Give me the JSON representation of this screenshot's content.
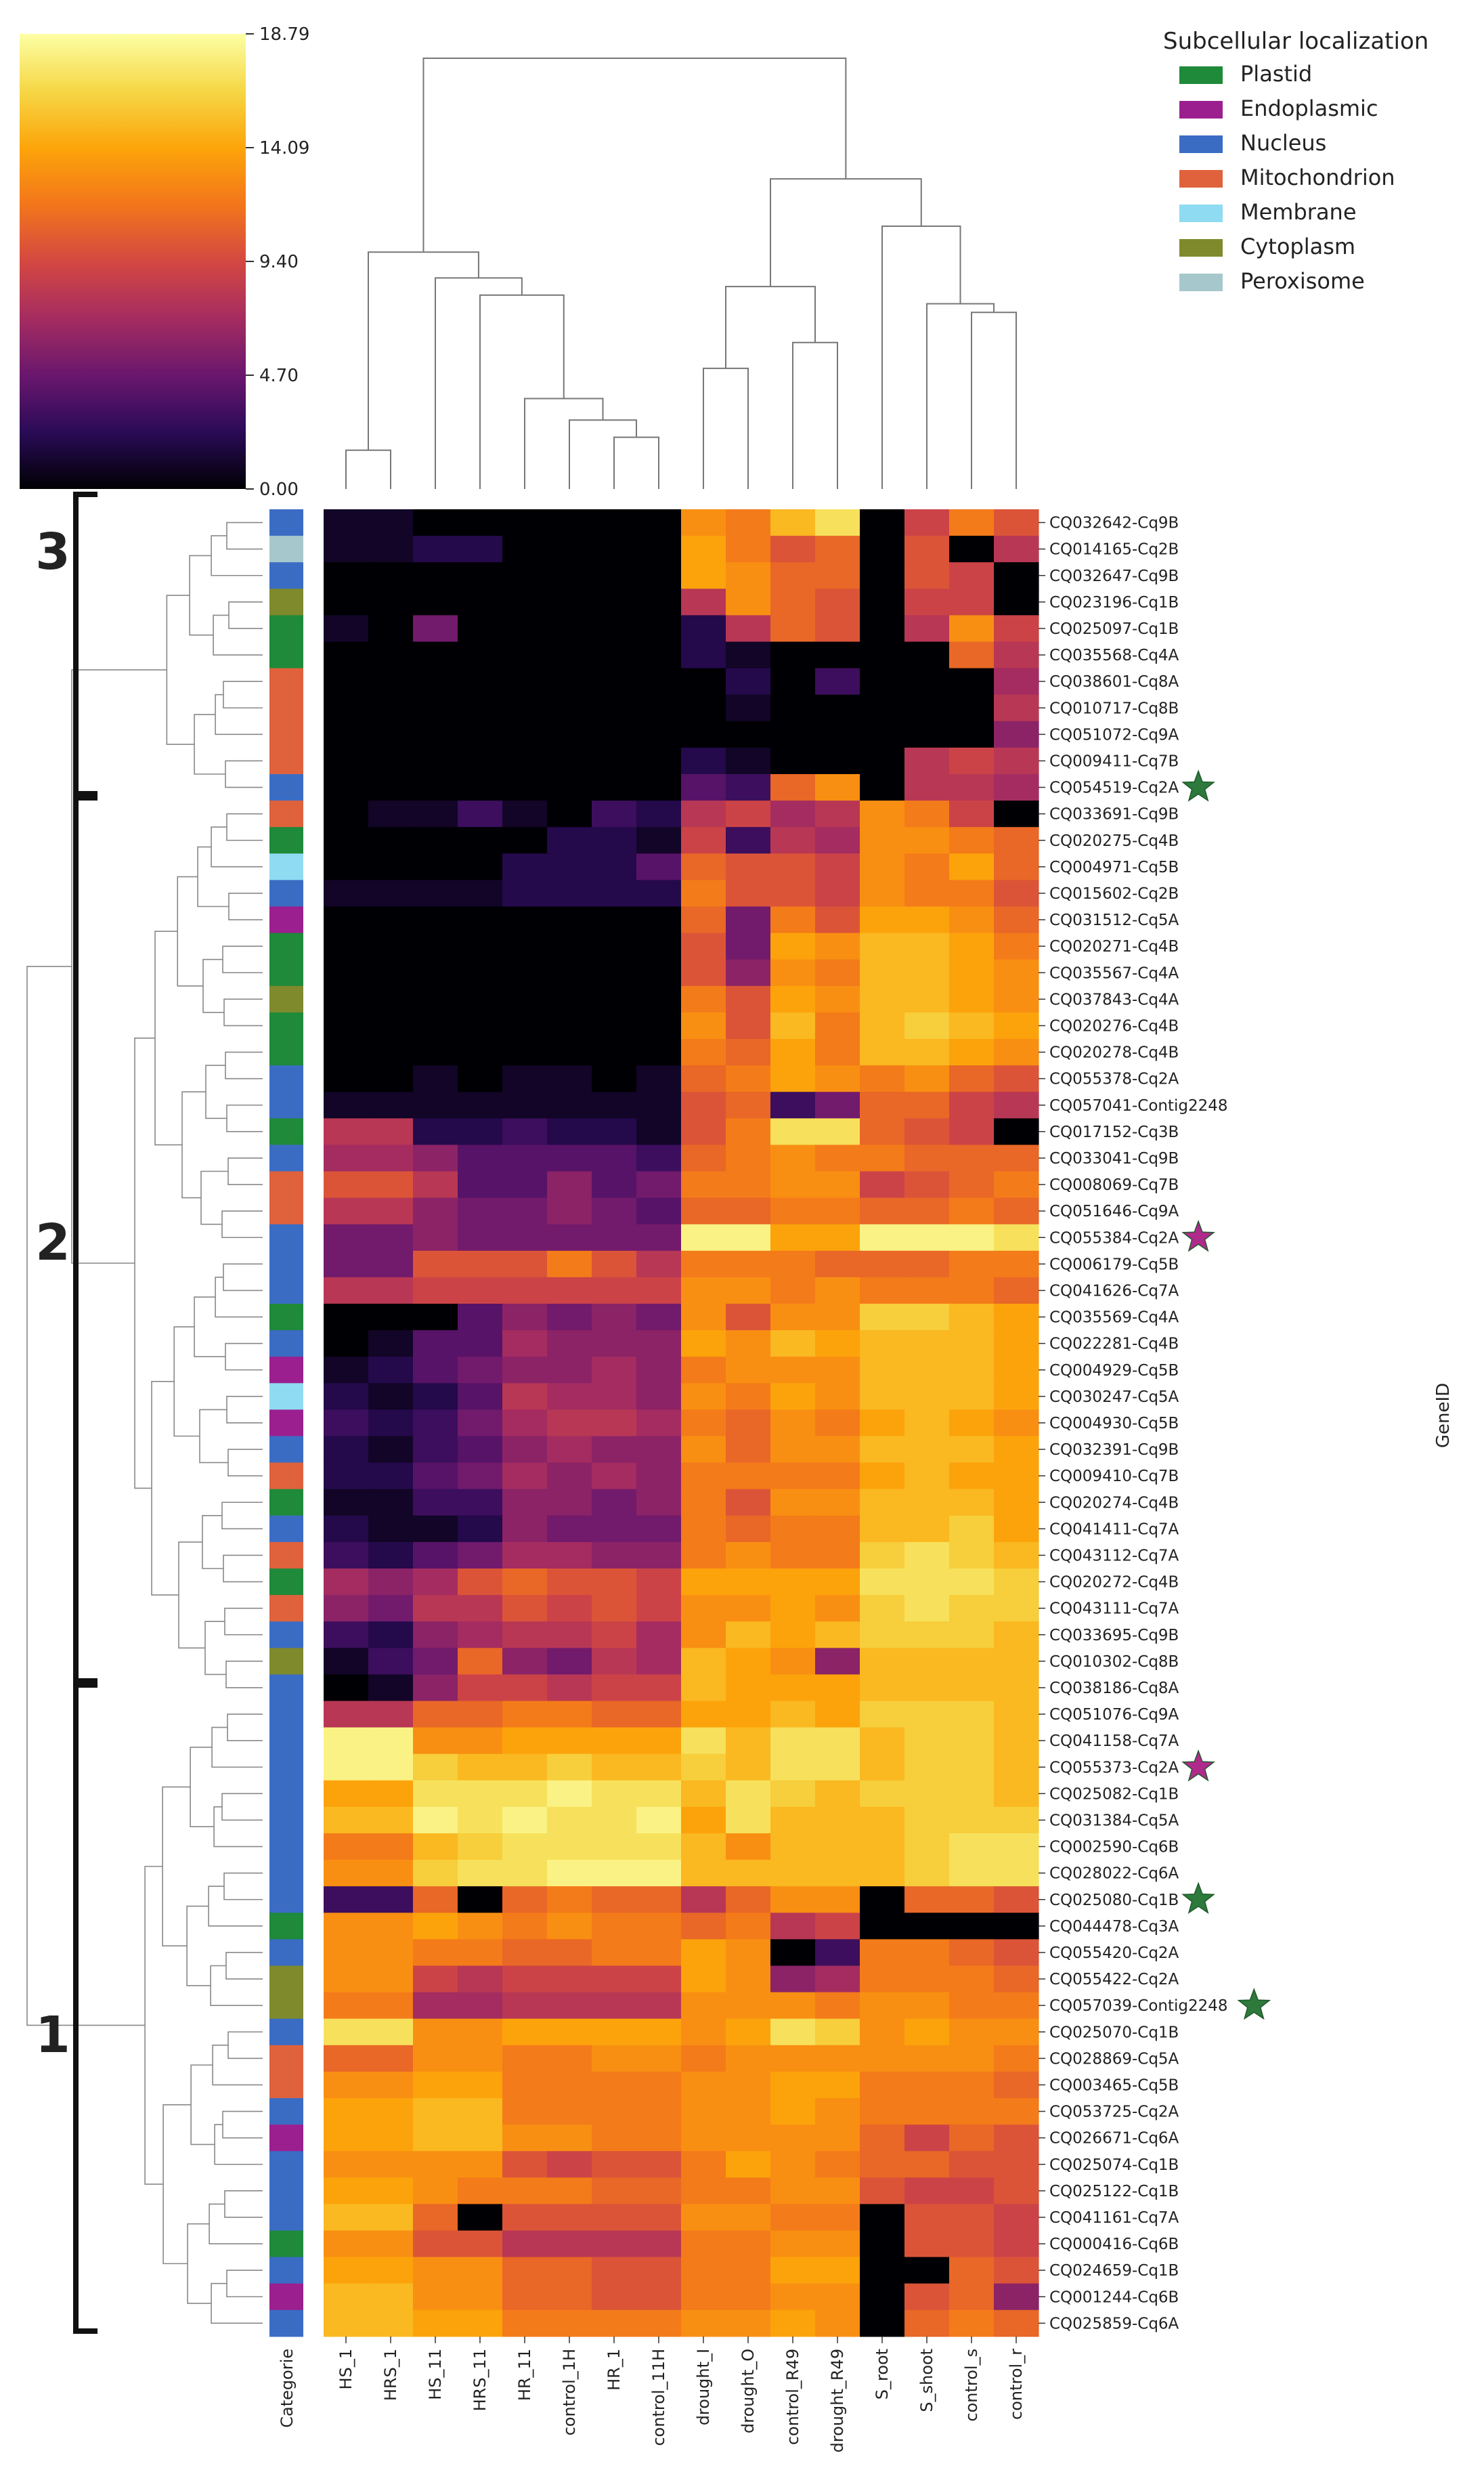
{
  "chart_data": {
    "type": "heatmap",
    "title": "",
    "colorbar": {
      "ticks": [
        "18.79",
        "14.09",
        "9.40",
        "4.70",
        "0.00"
      ],
      "min": 0,
      "max": 18.79,
      "colormap": [
        "#000004",
        "#2a0b57",
        "#6a176e",
        "#a52c60",
        "#d44842",
        "#f3761b",
        "#fca50a",
        "#f6d746",
        "#fcffa4"
      ]
    },
    "legend": {
      "title": "Subcellular localization",
      "placement": "top-right",
      "items": [
        {
          "label": "Plastid",
          "color": "#1e8a3a"
        },
        {
          "label": "Endoplasmic",
          "color": "#9b1f8f"
        },
        {
          "label": "Nucleus",
          "color": "#3b6cc4"
        },
        {
          "label": "Mitochondrion",
          "color": "#e0623c"
        },
        {
          "label": "Membrane",
          "color": "#8fdcf2"
        },
        {
          "label": "Cytoplasm",
          "color": "#7f8a2c"
        },
        {
          "label": "Peroxisome",
          "color": "#a6c8cc"
        }
      ]
    },
    "category_label": "Categorie",
    "y_axis_label": "GeneID",
    "columns": [
      "HS_1",
      "HRS_1",
      "HS_11",
      "HRS_11",
      "HR_11",
      "control_1H",
      "HR_1",
      "control_11H",
      "drought_I",
      "drought_O",
      "control_R49",
      "drought_R49",
      "S_root",
      "S_shoot",
      "control_s",
      "control_r"
    ],
    "rows": [
      "CQ032642-Cq9B",
      "CQ014165-Cq2B",
      "CQ032647-Cq9B",
      "CQ023196-Cq1B",
      "CQ025097-Cq1B",
      "CQ035568-Cq4A",
      "CQ038601-Cq8A",
      "CQ010717-Cq8B",
      "CQ051072-Cq9A",
      "CQ009411-Cq7B",
      "CQ054519-Cq2A",
      "CQ033691-Cq9B",
      "CQ020275-Cq4B",
      "CQ004971-Cq5B",
      "CQ015602-Cq2B",
      "CQ031512-Cq5A",
      "CQ020271-Cq4B",
      "CQ035567-Cq4A",
      "CQ037843-Cq4A",
      "CQ020276-Cq4B",
      "CQ020278-Cq4B",
      "CQ055378-Cq2A",
      "CQ057041-Contig2248",
      "CQ017152-Cq3B",
      "CQ033041-Cq9B",
      "CQ008069-Cq7B",
      "CQ051646-Cq9A",
      "CQ055384-Cq2A",
      "CQ006179-Cq5B",
      "CQ041626-Cq7A",
      "CQ035569-Cq4A",
      "CQ022281-Cq4B",
      "CQ004929-Cq5B",
      "CQ030247-Cq5A",
      "CQ004930-Cq5B",
      "CQ032391-Cq9B",
      "CQ009410-Cq7B",
      "CQ020274-Cq4B",
      "CQ041411-Cq7A",
      "CQ043112-Cq7A",
      "CQ020272-Cq4B",
      "CQ043111-Cq7A",
      "CQ033695-Cq9B",
      "CQ010302-Cq8B",
      "CQ038186-Cq8A",
      "CQ051076-Cq9A",
      "CQ041158-Cq7A",
      "CQ055373-Cq2A",
      "CQ025082-Cq1B",
      "CQ031384-Cq5A",
      "CQ002590-Cq6B",
      "CQ028022-Cq6A",
      "CQ025080-Cq1B",
      "CQ044478-Cq3A",
      "CQ055420-Cq2A",
      "CQ055422-Cq2A",
      "CQ057039-Contig2248",
      "CQ025070-Cq1B",
      "CQ028869-Cq5A",
      "CQ003465-Cq5B",
      "CQ053725-Cq2A",
      "CQ026671-Cq6A",
      "CQ025074-Cq1B",
      "CQ025122-Cq1B",
      "CQ041161-Cq7A",
      "CQ000416-Cq6B",
      "CQ024659-Cq1B",
      "CQ001244-Cq6B",
      "CQ025859-Cq6A"
    ],
    "row_categories": [
      "Nucleus",
      "Peroxisome",
      "Nucleus",
      "Cytoplasm",
      "Plastid",
      "Plastid",
      "Mitochondrion",
      "Mitochondrion",
      "Mitochondrion",
      "Mitochondrion",
      "Nucleus",
      "Mitochondrion",
      "Plastid",
      "Membrane",
      "Nucleus",
      "Endoplasmic",
      "Plastid",
      "Plastid",
      "Cytoplasm",
      "Plastid",
      "Plastid",
      "Nucleus",
      "Nucleus",
      "Plastid",
      "Nucleus",
      "Mitochondrion",
      "Mitochondrion",
      "Nucleus",
      "Nucleus",
      "Nucleus",
      "Plastid",
      "Nucleus",
      "Endoplasmic",
      "Membrane",
      "Endoplasmic",
      "Nucleus",
      "Mitochondrion",
      "Plastid",
      "Nucleus",
      "Mitochondrion",
      "Plastid",
      "Mitochondrion",
      "Nucleus",
      "Cytoplasm",
      "Nucleus",
      "Nucleus",
      "Nucleus",
      "Nucleus",
      "Nucleus",
      "Nucleus",
      "Nucleus",
      "Nucleus",
      "Nucleus",
      "Plastid",
      "Nucleus",
      "Cytoplasm",
      "Cytoplasm",
      "Nucleus",
      "Mitochondrion",
      "Mitochondrion",
      "Nucleus",
      "Endoplasmic",
      "Nucleus",
      "Nucleus",
      "Nucleus",
      "Plastid",
      "Nucleus",
      "Endoplasmic",
      "Nucleus"
    ],
    "values": [
      [
        1,
        1,
        0,
        0,
        0,
        0,
        0,
        0,
        13,
        12,
        15,
        17,
        0,
        9,
        12,
        10
      ],
      [
        1,
        1,
        2,
        2,
        0,
        0,
        0,
        0,
        14,
        12,
        10,
        11,
        0,
        10,
        0,
        8
      ],
      [
        0,
        0,
        0,
        0,
        0,
        0,
        0,
        0,
        14,
        13,
        11,
        11,
        0,
        10,
        9,
        0
      ],
      [
        0,
        0,
        0,
        0,
        0,
        0,
        0,
        0,
        8,
        13,
        11,
        10,
        0,
        9,
        9,
        0
      ],
      [
        1,
        0,
        5,
        0,
        0,
        0,
        0,
        0,
        2,
        8,
        11,
        10,
        0,
        8,
        13,
        9
      ],
      [
        0,
        0,
        0,
        0,
        0,
        0,
        0,
        0,
        2,
        1,
        0,
        0,
        0,
        0,
        11,
        8
      ],
      [
        0,
        0,
        0,
        0,
        0,
        0,
        0,
        0,
        0,
        2,
        0,
        3,
        0,
        0,
        0,
        7
      ],
      [
        0,
        0,
        0,
        0,
        0,
        0,
        0,
        0,
        0,
        1,
        0,
        0,
        0,
        0,
        0,
        8
      ],
      [
        0,
        0,
        0,
        0,
        0,
        0,
        0,
        0,
        0,
        0,
        0,
        0,
        0,
        0,
        0,
        6
      ],
      [
        0,
        0,
        0,
        0,
        0,
        0,
        0,
        0,
        2,
        1,
        0,
        0,
        0,
        8,
        9,
        8
      ],
      [
        0,
        0,
        0,
        0,
        0,
        0,
        0,
        0,
        4,
        3,
        11,
        13,
        0,
        8,
        8,
        7
      ],
      [
        0,
        1,
        1,
        3,
        1,
        0,
        3,
        2,
        8,
        9,
        7,
        8,
        13,
        12,
        9,
        0
      ],
      [
        0,
        0,
        0,
        0,
        0,
        2,
        2,
        1,
        9,
        3,
        8,
        7,
        13,
        13,
        12,
        11
      ],
      [
        0,
        0,
        0,
        0,
        2,
        2,
        2,
        4,
        11,
        10,
        10,
        9,
        13,
        12,
        14,
        11
      ],
      [
        1,
        1,
        1,
        1,
        2,
        2,
        2,
        2,
        12,
        10,
        10,
        9,
        13,
        12,
        12,
        10
      ],
      [
        0,
        0,
        0,
        0,
        0,
        0,
        0,
        0,
        11,
        5,
        12,
        10,
        14,
        14,
        13,
        11
      ],
      [
        0,
        0,
        0,
        0,
        0,
        0,
        0,
        0,
        10,
        5,
        14,
        13,
        15,
        15,
        14,
        12
      ],
      [
        0,
        0,
        0,
        0,
        0,
        0,
        0,
        0,
        10,
        6,
        13,
        12,
        15,
        15,
        14,
        13
      ],
      [
        0,
        0,
        0,
        0,
        0,
        0,
        0,
        0,
        12,
        10,
        14,
        13,
        15,
        15,
        14,
        13
      ],
      [
        0,
        0,
        0,
        0,
        0,
        0,
        0,
        0,
        13,
        10,
        15,
        12,
        15,
        16,
        15,
        14
      ],
      [
        0,
        0,
        0,
        0,
        0,
        0,
        0,
        0,
        12,
        11,
        14,
        12,
        15,
        15,
        14,
        13
      ],
      [
        0,
        0,
        1,
        0,
        1,
        1,
        0,
        1,
        11,
        12,
        14,
        13,
        12,
        13,
        11,
        10
      ],
      [
        1,
        1,
        1,
        1,
        1,
        1,
        1,
        1,
        10,
        11,
        3,
        5,
        11,
        11,
        9,
        8
      ],
      [
        8,
        8,
        2,
        2,
        3,
        2,
        2,
        1,
        10,
        12,
        17,
        17,
        11,
        10,
        9,
        0
      ],
      [
        7,
        7,
        6,
        4,
        4,
        4,
        4,
        3,
        11,
        12,
        13,
        12,
        12,
        11,
        11,
        11
      ],
      [
        10,
        10,
        8,
        4,
        4,
        6,
        4,
        5,
        12,
        12,
        13,
        13,
        9,
        10,
        11,
        12
      ],
      [
        8,
        8,
        6,
        5,
        5,
        6,
        5,
        4,
        11,
        11,
        12,
        12,
        11,
        11,
        12,
        11
      ],
      [
        5,
        5,
        6,
        5,
        5,
        5,
        5,
        5,
        18,
        18,
        14,
        14,
        18,
        18,
        18,
        17
      ],
      [
        5,
        5,
        10,
        10,
        10,
        12,
        10,
        8,
        12,
        12,
        12,
        11,
        11,
        11,
        12,
        12
      ],
      [
        8,
        8,
        9,
        9,
        9,
        9,
        9,
        9,
        13,
        13,
        12,
        13,
        12,
        12,
        12,
        11
      ],
      [
        0,
        0,
        0,
        4,
        6,
        5,
        6,
        5,
        13,
        10,
        13,
        13,
        16,
        16,
        15,
        14
      ],
      [
        0,
        1,
        4,
        4,
        7,
        6,
        6,
        6,
        14,
        13,
        15,
        14,
        15,
        15,
        15,
        14
      ],
      [
        1,
        2,
        4,
        5,
        6,
        6,
        7,
        6,
        12,
        13,
        13,
        13,
        15,
        15,
        15,
        14
      ],
      [
        2,
        1,
        2,
        4,
        8,
        7,
        7,
        6,
        13,
        12,
        14,
        13,
        15,
        15,
        15,
        14
      ],
      [
        3,
        2,
        3,
        5,
        7,
        8,
        8,
        7,
        12,
        11,
        13,
        12,
        14,
        15,
        14,
        13
      ],
      [
        2,
        1,
        3,
        4,
        6,
        7,
        6,
        6,
        13,
        11,
        13,
        13,
        15,
        15,
        15,
        14
      ],
      [
        2,
        2,
        4,
        5,
        7,
        6,
        7,
        6,
        12,
        12,
        12,
        12,
        14,
        15,
        14,
        14
      ],
      [
        1,
        1,
        3,
        3,
        6,
        6,
        5,
        6,
        12,
        10,
        13,
        13,
        15,
        15,
        15,
        14
      ],
      [
        2,
        1,
        1,
        2,
        6,
        5,
        5,
        5,
        12,
        11,
        12,
        12,
        15,
        15,
        16,
        14
      ],
      [
        3,
        2,
        4,
        5,
        7,
        7,
        6,
        6,
        12,
        13,
        12,
        12,
        16,
        17,
        16,
        15
      ],
      [
        7,
        6,
        7,
        10,
        11,
        10,
        10,
        9,
        14,
        14,
        14,
        14,
        17,
        17,
        17,
        16
      ],
      [
        6,
        5,
        8,
        8,
        10,
        9,
        10,
        9,
        13,
        13,
        14,
        13,
        16,
        17,
        16,
        16
      ],
      [
        3,
        2,
        6,
        7,
        8,
        8,
        9,
        7,
        13,
        15,
        14,
        15,
        16,
        16,
        16,
        15
      ],
      [
        1,
        3,
        5,
        11,
        6,
        5,
        8,
        7,
        15,
        14,
        13,
        6,
        15,
        15,
        15,
        15
      ],
      [
        0,
        1,
        6,
        9,
        9,
        8,
        9,
        9,
        15,
        14,
        14,
        14,
        15,
        15,
        15,
        15
      ],
      [
        8,
        8,
        11,
        11,
        12,
        12,
        11,
        11,
        14,
        14,
        15,
        14,
        16,
        16,
        16,
        15
      ],
      [
        18,
        18,
        13,
        13,
        14,
        14,
        14,
        14,
        17,
        15,
        17,
        17,
        15,
        16,
        16,
        15
      ],
      [
        18,
        18,
        16,
        15,
        15,
        16,
        15,
        15,
        16,
        15,
        17,
        17,
        15,
        16,
        16,
        15
      ],
      [
        14,
        14,
        17,
        17,
        17,
        18,
        17,
        17,
        15,
        17,
        16,
        15,
        16,
        16,
        16,
        15
      ],
      [
        15,
        15,
        18,
        17,
        18,
        17,
        17,
        18,
        14,
        17,
        15,
        15,
        15,
        16,
        16,
        16
      ],
      [
        12,
        12,
        15,
        16,
        17,
        17,
        17,
        17,
        15,
        13,
        15,
        15,
        15,
        16,
        17,
        17
      ],
      [
        13,
        13,
        16,
        17,
        17,
        18,
        18,
        18,
        15,
        15,
        15,
        15,
        15,
        16,
        17,
        17
      ],
      [
        3,
        3,
        11,
        0,
        11,
        12,
        11,
        11,
        8,
        11,
        13,
        13,
        0,
        11,
        11,
        10
      ],
      [
        13,
        13,
        14,
        13,
        12,
        13,
        12,
        12,
        11,
        12,
        8,
        9,
        0,
        0,
        0,
        0
      ],
      [
        13,
        13,
        12,
        12,
        11,
        11,
        12,
        12,
        14,
        13,
        0,
        3,
        12,
        12,
        11,
        10
      ],
      [
        13,
        13,
        9,
        8,
        9,
        9,
        9,
        9,
        14,
        13,
        6,
        7,
        12,
        12,
        12,
        11
      ],
      [
        12,
        12,
        7,
        7,
        8,
        8,
        8,
        8,
        13,
        13,
        13,
        12,
        13,
        13,
        12,
        12
      ],
      [
        17,
        17,
        13,
        13,
        14,
        14,
        14,
        14,
        13,
        14,
        17,
        16,
        13,
        14,
        13,
        13
      ],
      [
        11,
        11,
        13,
        13,
        12,
        12,
        13,
        13,
        12,
        13,
        13,
        13,
        13,
        13,
        13,
        12
      ],
      [
        13,
        13,
        14,
        14,
        12,
        12,
        12,
        12,
        13,
        13,
        14,
        14,
        12,
        12,
        12,
        11
      ],
      [
        14,
        14,
        15,
        15,
        12,
        12,
        12,
        12,
        13,
        13,
        14,
        13,
        12,
        12,
        12,
        12
      ],
      [
        14,
        14,
        15,
        15,
        13,
        13,
        12,
        12,
        13,
        13,
        13,
        13,
        11,
        9,
        11,
        10
      ],
      [
        13,
        13,
        13,
        13,
        10,
        9,
        10,
        10,
        12,
        14,
        13,
        12,
        11,
        11,
        10,
        10
      ],
      [
        14,
        14,
        13,
        12,
        12,
        12,
        11,
        11,
        12,
        12,
        13,
        13,
        10,
        9,
        9,
        10
      ],
      [
        15,
        15,
        11,
        0,
        10,
        10,
        10,
        10,
        13,
        13,
        12,
        12,
        0,
        10,
        10,
        9
      ],
      [
        13,
        13,
        10,
        10,
        8,
        8,
        8,
        8,
        12,
        12,
        13,
        13,
        0,
        10,
        10,
        9
      ],
      [
        14,
        14,
        13,
        13,
        11,
        11,
        10,
        10,
        12,
        12,
        14,
        14,
        0,
        0,
        11,
        10
      ],
      [
        15,
        15,
        13,
        13,
        11,
        11,
        10,
        10,
        12,
        12,
        13,
        13,
        0,
        10,
        11,
        6
      ],
      [
        15,
        15,
        14,
        14,
        12,
        12,
        12,
        12,
        13,
        13,
        14,
        13,
        0,
        11,
        12,
        11
      ]
    ],
    "stars": [
      {
        "row": "CQ054519-Cq2A",
        "color": "#2d7a3c"
      },
      {
        "row": "CQ055384-Cq2A",
        "color": "#b02a8c"
      },
      {
        "row": "CQ055373-Cq2A",
        "color": "#b02a8c"
      },
      {
        "row": "CQ025080-Cq1B",
        "color": "#2d7a3c"
      },
      {
        "row": "CQ057039-Contig2248",
        "color": "#2d7a3c"
      }
    ],
    "cluster_labels": [
      "3",
      "2",
      "1"
    ],
    "cluster_row_spans": [
      [
        0,
        10
      ],
      [
        11,
        44
      ],
      [
        45,
        68
      ]
    ],
    "column_dendrogram": [
      [
        0,
        1,
        0.09
      ],
      [
        6,
        7,
        0.12
      ],
      [
        5,
        16,
        0.16
      ],
      [
        4,
        17,
        0.21
      ],
      [
        3,
        18,
        0.45
      ],
      [
        2,
        19,
        0.49
      ],
      [
        20,
        30,
        0.55
      ],
      [
        8,
        9,
        0.28
      ],
      [
        10,
        11,
        0.34
      ],
      [
        22,
        23,
        0.47
      ],
      [
        14,
        15,
        0.41
      ],
      [
        13,
        25,
        0.43
      ],
      [
        12,
        26,
        0.61
      ],
      [
        24,
        27,
        0.72
      ],
      [
        21,
        28,
        1.0
      ]
    ],
    "row_dendrogram_depth": "approximate"
  }
}
